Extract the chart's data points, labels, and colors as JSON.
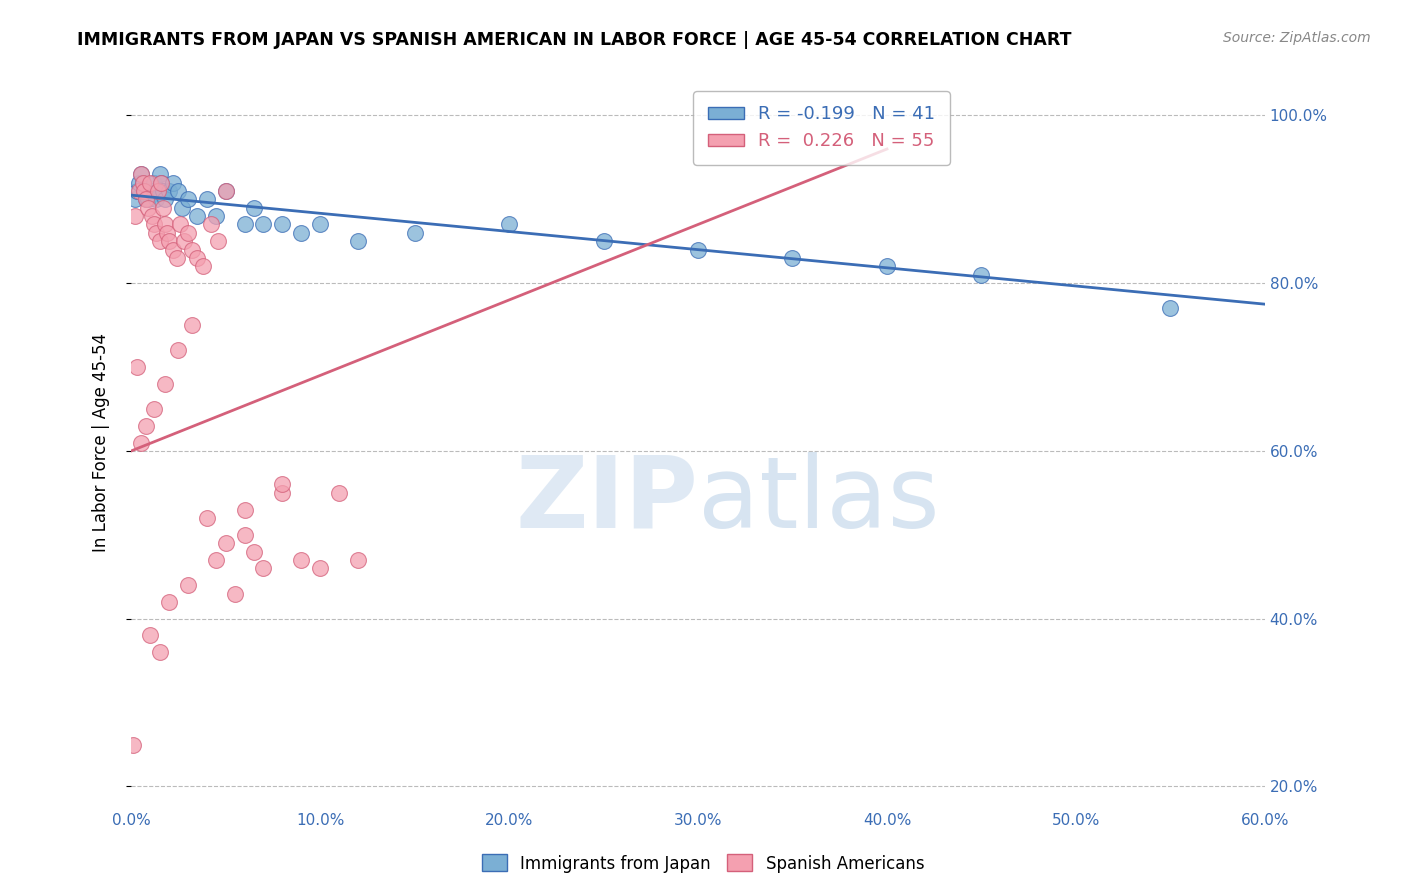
{
  "title": "IMMIGRANTS FROM JAPAN VS SPANISH AMERICAN IN LABOR FORCE | AGE 45-54 CORRELATION CHART",
  "source": "Source: ZipAtlas.com",
  "ylabel": "In Labor Force | Age 45-54",
  "xlim": [
    0.0,
    0.6
  ],
  "ylim": [
    0.18,
    1.04
  ],
  "blue_R": "-0.199",
  "blue_N": "41",
  "pink_R": "0.226",
  "pink_N": "55",
  "blue_color": "#7BAFD4",
  "pink_color": "#F4A0B0",
  "blue_line_color": "#3B6DB5",
  "pink_line_color": "#D4607A",
  "watermark_zip": "ZIP",
  "watermark_atlas": "atlas",
  "blue_scatter_x": [
    0.002,
    0.003,
    0.004,
    0.005,
    0.006,
    0.007,
    0.008,
    0.009,
    0.01,
    0.011,
    0.012,
    0.013,
    0.014,
    0.015,
    0.016,
    0.017,
    0.018,
    0.02,
    0.022,
    0.025,
    0.027,
    0.03,
    0.035,
    0.04,
    0.045,
    0.05,
    0.06,
    0.065,
    0.07,
    0.08,
    0.09,
    0.1,
    0.12,
    0.15,
    0.2,
    0.25,
    0.3,
    0.35,
    0.4,
    0.45,
    0.55
  ],
  "blue_scatter_y": [
    0.9,
    0.91,
    0.92,
    0.93,
    0.92,
    0.91,
    0.9,
    0.9,
    0.91,
    0.91,
    0.92,
    0.9,
    0.91,
    0.93,
    0.92,
    0.91,
    0.9,
    0.91,
    0.92,
    0.91,
    0.89,
    0.9,
    0.88,
    0.9,
    0.88,
    0.91,
    0.87,
    0.89,
    0.87,
    0.87,
    0.86,
    0.87,
    0.85,
    0.86,
    0.87,
    0.85,
    0.84,
    0.83,
    0.82,
    0.81,
    0.77
  ],
  "pink_scatter_x": [
    0.001,
    0.002,
    0.003,
    0.004,
    0.005,
    0.006,
    0.007,
    0.008,
    0.009,
    0.01,
    0.011,
    0.012,
    0.013,
    0.014,
    0.015,
    0.016,
    0.017,
    0.018,
    0.019,
    0.02,
    0.022,
    0.024,
    0.026,
    0.028,
    0.03,
    0.032,
    0.035,
    0.038,
    0.042,
    0.046,
    0.05,
    0.055,
    0.06,
    0.065,
    0.07,
    0.08,
    0.09,
    0.1,
    0.11,
    0.12,
    0.005,
    0.008,
    0.012,
    0.018,
    0.025,
    0.032,
    0.04,
    0.05,
    0.06,
    0.08,
    0.01,
    0.015,
    0.02,
    0.03,
    0.045
  ],
  "pink_scatter_y": [
    0.25,
    0.88,
    0.7,
    0.91,
    0.93,
    0.92,
    0.91,
    0.9,
    0.89,
    0.92,
    0.88,
    0.87,
    0.86,
    0.91,
    0.85,
    0.92,
    0.89,
    0.87,
    0.86,
    0.85,
    0.84,
    0.83,
    0.87,
    0.85,
    0.86,
    0.84,
    0.83,
    0.82,
    0.87,
    0.85,
    0.91,
    0.43,
    0.5,
    0.48,
    0.46,
    0.55,
    0.47,
    0.46,
    0.55,
    0.47,
    0.61,
    0.63,
    0.65,
    0.68,
    0.72,
    0.75,
    0.52,
    0.49,
    0.53,
    0.56,
    0.38,
    0.36,
    0.42,
    0.44,
    0.47
  ]
}
